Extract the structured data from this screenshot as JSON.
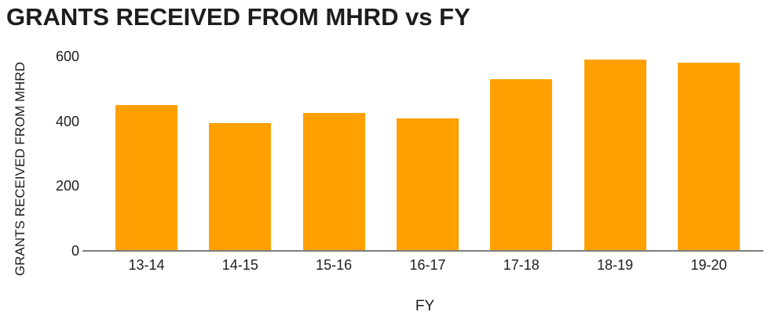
{
  "page": {
    "background": "#ffffff"
  },
  "chart_data": {
    "type": "bar",
    "title": "GRANTS RECEIVED FROM MHRD vs FY",
    "xlabel": "FY",
    "ylabel": "GRANTS RECEIVED FROM MHRD",
    "categories": [
      "13-14",
      "14-15",
      "15-16",
      "16-17",
      "17-18",
      "18-19",
      "19-20"
    ],
    "values": [
      450,
      395,
      425,
      410,
      530,
      590,
      580
    ],
    "ylim": [
      0,
      600
    ],
    "yticks": [
      0,
      200,
      400,
      600
    ],
    "grid": "off",
    "legend": "none",
    "bar_color": "#FFA000",
    "axis_color": "#7D7D7D",
    "text_color": "#1D1D1D"
  }
}
